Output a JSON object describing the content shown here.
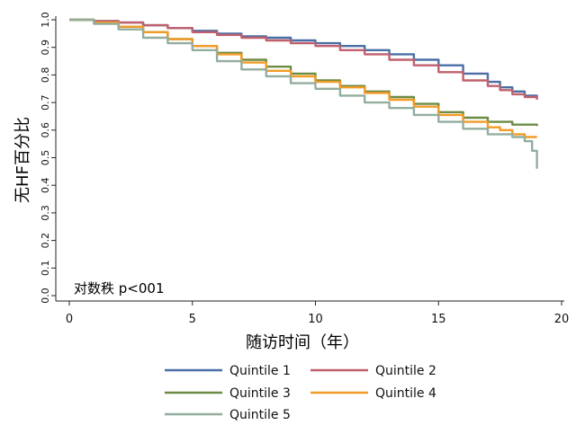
{
  "chart_data": {
    "type": "line",
    "title": "",
    "xlabel": "随访时间（年）",
    "ylabel": "无HF百分比",
    "annotation": "对数秩 p<001",
    "xlim": [
      0,
      20
    ],
    "ylim": [
      0,
      1.0
    ],
    "x_ticks": [
      0,
      5,
      10,
      15,
      20
    ],
    "y_ticks": [
      0.0,
      0.1,
      0.2,
      0.3,
      0.4,
      0.5,
      0.6,
      0.7,
      0.8,
      0.9,
      1.0
    ],
    "x_tick_labels": [
      "0",
      "5",
      "10",
      "15",
      "20"
    ],
    "y_tick_labels": [
      "0.0",
      "0.1",
      "0.2",
      "0.3",
      "0.4",
      "0.5",
      "0.6",
      "0.7",
      "0.8",
      "0.9",
      "1.0"
    ],
    "grid": false,
    "legend_position": "bottom",
    "series": [
      {
        "name": "Quintile 1",
        "color": "#4a6fa5",
        "points": [
          [
            0,
            1.0
          ],
          [
            1,
            0.995
          ],
          [
            2,
            0.99
          ],
          [
            3,
            0.98
          ],
          [
            4,
            0.97
          ],
          [
            5,
            0.96
          ],
          [
            6,
            0.95
          ],
          [
            7,
            0.94
          ],
          [
            8,
            0.935
          ],
          [
            9,
            0.925
          ],
          [
            10,
            0.915
          ],
          [
            11,
            0.905
          ],
          [
            12,
            0.89
          ],
          [
            13,
            0.875
          ],
          [
            14,
            0.855
          ],
          [
            15,
            0.835
          ],
          [
            16,
            0.805
          ],
          [
            17,
            0.775
          ],
          [
            17.5,
            0.755
          ],
          [
            18,
            0.74
          ],
          [
            18.5,
            0.725
          ],
          [
            19,
            0.72
          ]
        ]
      },
      {
        "name": "Quintile 2",
        "color": "#c0606e",
        "points": [
          [
            0,
            1.0
          ],
          [
            1,
            0.995
          ],
          [
            2,
            0.99
          ],
          [
            3,
            0.98
          ],
          [
            4,
            0.97
          ],
          [
            5,
            0.955
          ],
          [
            6,
            0.945
          ],
          [
            7,
            0.935
          ],
          [
            8,
            0.925
          ],
          [
            9,
            0.915
          ],
          [
            10,
            0.905
          ],
          [
            11,
            0.89
          ],
          [
            12,
            0.875
          ],
          [
            13,
            0.855
          ],
          [
            14,
            0.835
          ],
          [
            15,
            0.81
          ],
          [
            16,
            0.78
          ],
          [
            17,
            0.76
          ],
          [
            17.5,
            0.745
          ],
          [
            18,
            0.73
          ],
          [
            18.5,
            0.72
          ],
          [
            19,
            0.71
          ]
        ]
      },
      {
        "name": "Quintile 3",
        "color": "#6b8c45",
        "points": [
          [
            0,
            1.0
          ],
          [
            1,
            0.99
          ],
          [
            2,
            0.975
          ],
          [
            3,
            0.955
          ],
          [
            4,
            0.93
          ],
          [
            5,
            0.905
          ],
          [
            6,
            0.88
          ],
          [
            7,
            0.855
          ],
          [
            8,
            0.83
          ],
          [
            9,
            0.805
          ],
          [
            10,
            0.78
          ],
          [
            11,
            0.76
          ],
          [
            12,
            0.74
          ],
          [
            13,
            0.72
          ],
          [
            14,
            0.695
          ],
          [
            15,
            0.665
          ],
          [
            16,
            0.645
          ],
          [
            17,
            0.63
          ],
          [
            18,
            0.62
          ],
          [
            19,
            0.615
          ]
        ]
      },
      {
        "name": "Quintile 4",
        "color": "#f29b26",
        "points": [
          [
            0,
            1.0
          ],
          [
            1,
            0.99
          ],
          [
            2,
            0.975
          ],
          [
            3,
            0.955
          ],
          [
            4,
            0.93
          ],
          [
            5,
            0.905
          ],
          [
            6,
            0.875
          ],
          [
            7,
            0.845
          ],
          [
            8,
            0.815
          ],
          [
            9,
            0.795
          ],
          [
            10,
            0.775
          ],
          [
            11,
            0.755
          ],
          [
            12,
            0.735
          ],
          [
            13,
            0.71
          ],
          [
            14,
            0.685
          ],
          [
            15,
            0.655
          ],
          [
            16,
            0.63
          ],
          [
            17,
            0.61
          ],
          [
            17.5,
            0.6
          ],
          [
            18,
            0.585
          ],
          [
            18.5,
            0.575
          ],
          [
            19,
            0.575
          ]
        ]
      },
      {
        "name": "Quintile 5",
        "color": "#93ad9e",
        "points": [
          [
            0,
            1.0
          ],
          [
            1,
            0.985
          ],
          [
            2,
            0.965
          ],
          [
            3,
            0.935
          ],
          [
            4,
            0.915
          ],
          [
            5,
            0.89
          ],
          [
            6,
            0.85
          ],
          [
            7,
            0.82
          ],
          [
            8,
            0.795
          ],
          [
            9,
            0.77
          ],
          [
            10,
            0.75
          ],
          [
            11,
            0.725
          ],
          [
            12,
            0.7
          ],
          [
            13,
            0.68
          ],
          [
            14,
            0.655
          ],
          [
            15,
            0.63
          ],
          [
            16,
            0.605
          ],
          [
            17,
            0.585
          ],
          [
            18,
            0.575
          ],
          [
            18.5,
            0.56
          ],
          [
            18.8,
            0.525
          ],
          [
            19,
            0.46
          ]
        ]
      }
    ]
  }
}
